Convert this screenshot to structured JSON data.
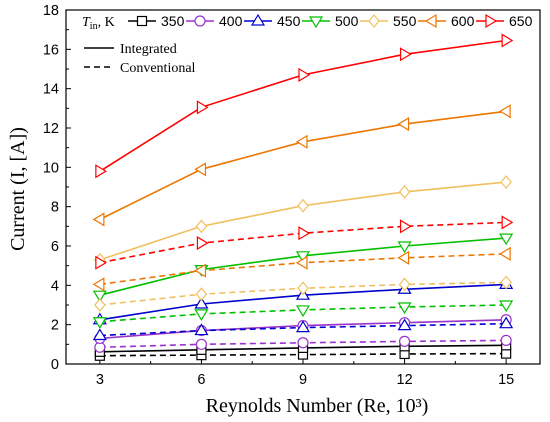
{
  "chart_data": {
    "type": "line",
    "xlabel": "Reynolds Number (Re, 10³)",
    "ylabel": "Current (I, [A])",
    "x": [
      3,
      6,
      9,
      12,
      15
    ],
    "xticks": [
      "3",
      "6",
      "9",
      "12",
      "15"
    ],
    "yticks": [
      "0",
      "2",
      "4",
      "6",
      "8",
      "10",
      "12",
      "14",
      "16",
      "18"
    ],
    "xlim": [
      2,
      16
    ],
    "ylim": [
      0,
      18
    ],
    "grid": false,
    "legend_title": {
      "main": "T",
      "sub": "in",
      "rest": ", K"
    },
    "line_styles": [
      {
        "name": "Integrated",
        "dash": "solid"
      },
      {
        "name": "Conventional",
        "dash": "dashed"
      }
    ],
    "series": [
      {
        "name": "350",
        "color": "#000000",
        "marker": "square",
        "integrated": [
          0.62,
          0.72,
          0.82,
          0.9,
          0.95
        ],
        "conventional": [
          0.42,
          0.45,
          0.48,
          0.51,
          0.53
        ]
      },
      {
        "name": "400",
        "color": "#9932cc",
        "marker": "circle",
        "integrated": [
          1.3,
          1.7,
          1.95,
          2.1,
          2.25
        ],
        "conventional": [
          0.85,
          1.0,
          1.08,
          1.15,
          1.2
        ]
      },
      {
        "name": "450",
        "color": "#0000cd",
        "marker": "triangle-up",
        "integrated": [
          2.25,
          3.05,
          3.5,
          3.8,
          4.05
        ],
        "conventional": [
          1.45,
          1.7,
          1.85,
          1.95,
          2.05
        ]
      },
      {
        "name": "500",
        "color": "#00c000",
        "marker": "triangle-down",
        "integrated": [
          3.5,
          4.8,
          5.5,
          6.0,
          6.4
        ],
        "conventional": [
          2.15,
          2.55,
          2.75,
          2.9,
          3.0
        ]
      },
      {
        "name": "550",
        "color": "#f0c060",
        "marker": "diamond",
        "integrated": [
          5.3,
          7.0,
          8.05,
          8.75,
          9.25
        ],
        "conventional": [
          3.0,
          3.55,
          3.85,
          4.05,
          4.15
        ]
      },
      {
        "name": "600",
        "color": "#ee7600",
        "marker": "triangle-left",
        "integrated": [
          7.35,
          9.9,
          11.3,
          12.2,
          12.85
        ],
        "conventional": [
          4.05,
          4.75,
          5.15,
          5.4,
          5.6
        ]
      },
      {
        "name": "650",
        "color": "#ff0000",
        "marker": "triangle-right",
        "integrated": [
          9.8,
          13.05,
          14.7,
          15.75,
          16.45
        ],
        "conventional": [
          5.15,
          6.15,
          6.65,
          7.0,
          7.2
        ]
      }
    ]
  }
}
